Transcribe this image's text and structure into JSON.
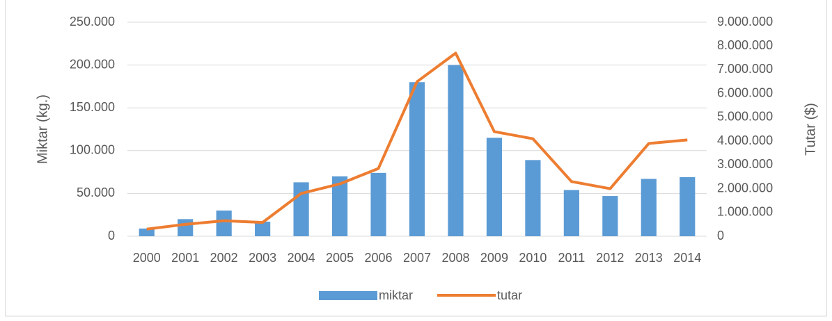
{
  "chart_data": {
    "type": "bar",
    "y_label": "Miktar (kg.)",
    "y2_label": "Tutar ($)",
    "categories": [
      "2000",
      "2001",
      "2002",
      "2003",
      "2004",
      "2005",
      "2006",
      "2007",
      "2008",
      "2009",
      "2010",
      "2011",
      "2012",
      "2013",
      "2014"
    ],
    "series": [
      {
        "name": "miktar",
        "type": "bar",
        "color": "#5b9bd5",
        "axis": "y",
        "values": [
          9000,
          20000,
          30000,
          17000,
          63000,
          70000,
          74000,
          180000,
          200000,
          115000,
          89000,
          54000,
          47000,
          67000,
          69000
        ]
      },
      {
        "name": "tutar",
        "type": "line",
        "color": "#ed7d31",
        "axis": "y2",
        "values": [
          300000,
          500000,
          650000,
          580000,
          1800000,
          2200000,
          2850000,
          6500000,
          7700000,
          4400000,
          4100000,
          2300000,
          2000000,
          3900000,
          4050000
        ]
      }
    ],
    "ylim": [
      0,
      250000
    ],
    "yticks": [
      0,
      {
        "value": 50000,
        "label": "50.000"
      },
      {
        "value": 100000,
        "label": "100.000"
      },
      {
        "value": 150000,
        "label": "150.000"
      },
      {
        "value": 200000,
        "label": "200.000"
      },
      {
        "value": 250000,
        "label": "250.000"
      }
    ],
    "y2lim": [
      0,
      9000000
    ],
    "y2ticks": [
      0,
      {
        "value": 1000000,
        "label": "1.000.000"
      },
      {
        "value": 2000000,
        "label": "2.000.000"
      },
      {
        "value": 3000000,
        "label": "3.000.000"
      },
      {
        "value": 4000000,
        "label": "4.000.000"
      },
      {
        "value": 5000000,
        "label": "5.000.000"
      },
      {
        "value": 6000000,
        "label": "6.000.000"
      },
      {
        "value": 7000000,
        "label": "7.000.000"
      },
      {
        "value": 8000000,
        "label": "8.000.000"
      },
      {
        "value": 9000000,
        "label": "9.000.000"
      }
    ],
    "grid": true,
    "legend": "bottom"
  }
}
